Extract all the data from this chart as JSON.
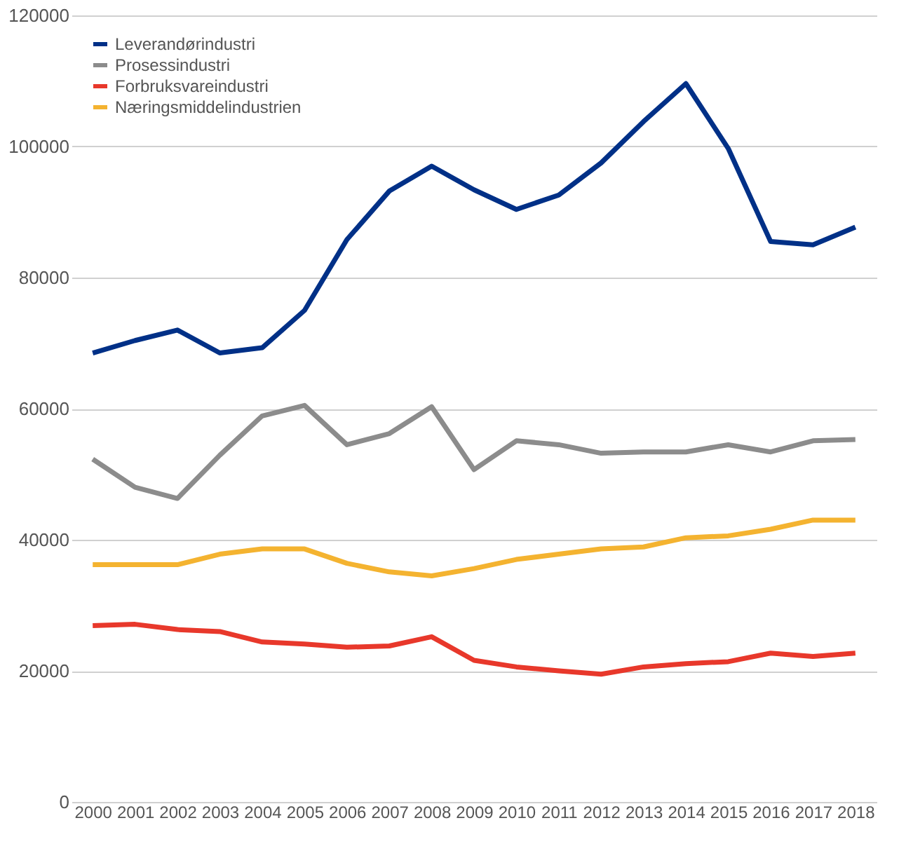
{
  "chart_data": {
    "type": "line",
    "categories": [
      "2000",
      "2001",
      "2002",
      "2003",
      "2004",
      "2005",
      "2006",
      "2007",
      "2008",
      "2009",
      "2010",
      "2011",
      "2012",
      "2013",
      "2014",
      "2015",
      "2016",
      "2017",
      "2018"
    ],
    "series": [
      {
        "name": "Leverandørindustri",
        "color": "#003087",
        "values": [
          68500,
          70400,
          72000,
          68500,
          69300,
          75000,
          85800,
          93200,
          97000,
          93400,
          90400,
          92600,
          97500,
          103800,
          109600,
          99700,
          85500,
          85000,
          87700
        ]
      },
      {
        "name": "Prosessindustri",
        "color": "#8c8c8c",
        "values": [
          52300,
          48000,
          46300,
          52900,
          58900,
          60500,
          54500,
          56200,
          60300,
          50700,
          55100,
          54500,
          53200,
          53400,
          53400,
          54500,
          53400,
          55100,
          55300
        ]
      },
      {
        "name": "Forbruksvareindustri",
        "color": "#e8382b",
        "values": [
          26900,
          27100,
          26300,
          26000,
          24400,
          24100,
          23600,
          23800,
          25200,
          21600,
          20600,
          20000,
          19500,
          20600,
          21100,
          21400,
          22700,
          22200,
          22700
        ]
      },
      {
        "name": "Næringsmiddelindustrien",
        "color": "#f4b330",
        "values": [
          36200,
          36200,
          36200,
          37800,
          38600,
          38600,
          36400,
          35100,
          34500,
          35600,
          37000,
          37800,
          38600,
          38900,
          40300,
          40600,
          41600,
          43000,
          43000
        ]
      }
    ],
    "ylim": [
      0,
      120000
    ],
    "yticks": [
      0,
      20000,
      40000,
      60000,
      80000,
      100000,
      120000
    ],
    "grid": "y",
    "legend": "top left",
    "line_style": "solid",
    "marker": "none"
  }
}
